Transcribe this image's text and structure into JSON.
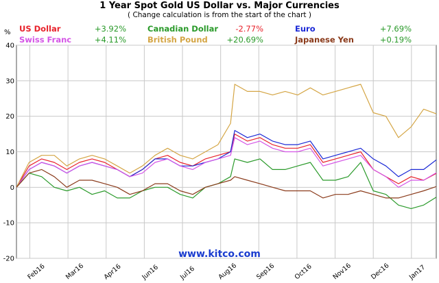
{
  "chart_data": {
    "type": "line",
    "title": "1 Year Spot Gold US Dollar vs. Major Currencies",
    "subtitle": "( Change calculation is from the start of the chart )",
    "ylabel": "%",
    "ylim": [
      -20,
      40
    ],
    "yticks": [
      "40",
      "30",
      "20",
      "10",
      "0",
      "-10",
      "-20"
    ],
    "x_ticks": [
      "Feb16",
      "Mar16",
      "Apr16",
      "Jun16",
      "Jul16",
      "Aug16",
      "Sep16",
      "Oct16",
      "Nov16",
      "Dec16",
      "Jan17"
    ],
    "watermark": "www.kitco.com",
    "grid": true,
    "legend_placement": "top",
    "x": [
      0,
      3,
      6,
      9,
      12,
      15,
      18,
      21,
      24,
      27,
      30,
      33,
      36,
      39,
      42,
      45,
      48,
      51,
      52,
      55,
      58,
      61,
      64,
      67,
      70,
      73,
      76,
      79,
      82,
      85,
      88,
      91,
      94,
      97,
      100
    ],
    "series": [
      {
        "name": "US Dollar",
        "change": "+3.92%",
        "color": "#e8222b",
        "values": [
          0,
          6,
          8,
          7,
          5,
          7,
          8,
          7,
          5,
          3,
          5,
          8,
          9,
          7,
          6,
          8,
          9,
          10,
          15,
          13,
          14,
          12,
          11,
          11,
          12,
          7,
          8,
          9,
          10,
          5,
          3,
          1,
          3,
          2,
          3.9
        ]
      },
      {
        "name": "Canadian Dollar",
        "change": "-2.77%",
        "color": "#2a9a2a",
        "values": [
          0,
          4,
          3,
          0,
          -1,
          0,
          -2,
          -1,
          -3,
          -3,
          -1,
          0,
          0,
          -2,
          -3,
          0,
          1,
          3,
          8,
          7,
          8,
          5,
          5,
          6,
          7,
          2,
          2,
          3,
          7,
          -1,
          -2,
          -5,
          -6,
          -5,
          -2.8
        ]
      },
      {
        "name": "Euro",
        "change": "+7.69%",
        "color": "#1a28d6",
        "values": [
          0,
          5,
          7,
          6,
          4,
          6,
          7,
          6,
          5,
          3,
          5,
          8,
          8,
          6,
          6,
          7,
          8,
          10,
          16,
          14,
          15,
          13,
          12,
          12,
          13,
          8,
          9,
          10,
          11,
          8,
          6,
          3,
          5,
          5,
          7.7
        ]
      },
      {
        "name": "Swiss Franc",
        "change": "+4.11%",
        "color": "#d455e6",
        "values": [
          0,
          5,
          7,
          6,
          4,
          6,
          7,
          6,
          5,
          3,
          4,
          7,
          8,
          6,
          5,
          7,
          8,
          9,
          14,
          12,
          13,
          11,
          10,
          10,
          11,
          6,
          7,
          8,
          9,
          5,
          3,
          0,
          2,
          2,
          4.1
        ]
      },
      {
        "name": "British Pound",
        "change": "+20.69%",
        "color": "#d4a544",
        "values": [
          0,
          7,
          9,
          9,
          6,
          8,
          9,
          8,
          6,
          4,
          6,
          9,
          11,
          9,
          8,
          10,
          12,
          18,
          29,
          27,
          27,
          26,
          27,
          26,
          28,
          26,
          27,
          28,
          29,
          21,
          20,
          14,
          17,
          22,
          20.7
        ]
      },
      {
        "name": "Japanese Yen",
        "change": "+0.19%",
        "color": "#8a3a1a",
        "values": [
          0,
          4,
          5,
          3,
          0,
          2,
          2,
          1,
          0,
          -2,
          -1,
          1,
          1,
          -1,
          -2,
          0,
          1,
          2,
          3,
          2,
          1,
          0,
          -1,
          -1,
          -1,
          -3,
          -2,
          -2,
          -1,
          -2,
          -3,
          -3,
          -2,
          -1,
          0.2
        ]
      }
    ]
  }
}
